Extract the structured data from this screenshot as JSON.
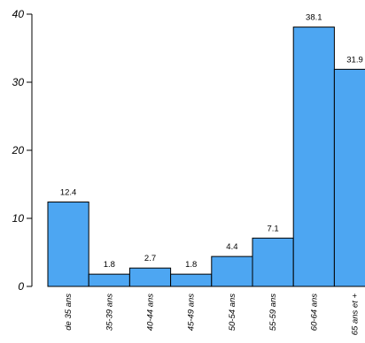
{
  "chart_data": {
    "type": "bar",
    "categories": [
      "de 35 ans",
      "35-39 ans",
      "40-44 ans",
      "45-49 ans",
      "50-54 ans",
      "55-59 ans",
      "60-64 ans",
      "65 ans et +"
    ],
    "values": [
      12.4,
      1.8,
      2.7,
      1.8,
      4.4,
      7.1,
      38.1,
      31.9
    ],
    "value_labels": [
      "12.4",
      "1.8",
      "2.7",
      "1.8",
      "4.4",
      "7.1",
      "38.1",
      "31.9"
    ],
    "y_ticks": [
      "0",
      "10",
      "20",
      "30",
      "40"
    ],
    "title": "",
    "xlabel": "",
    "ylabel": "",
    "ylim": [
      0,
      40
    ],
    "grid": false,
    "legend": "none",
    "bar_color": "#4da6f2",
    "bar_edge_color": "#000000"
  }
}
